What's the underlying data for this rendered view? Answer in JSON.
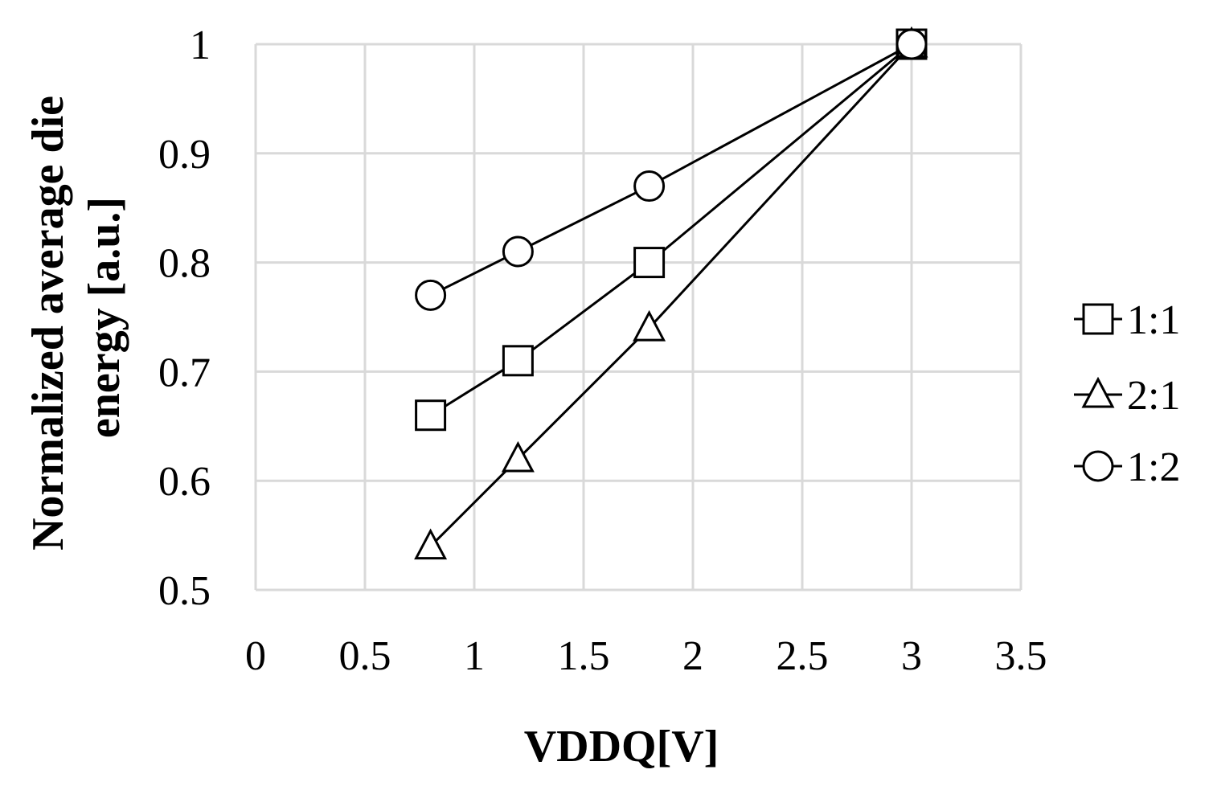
{
  "chart_data": {
    "type": "line",
    "title": "",
    "xlabel": "VDDQ[V]",
    "ylabel_lines": [
      "Normalized average die",
      "energy [a.u.]"
    ],
    "xlim": [
      0,
      3.5
    ],
    "ylim": [
      0.5,
      1
    ],
    "x_ticks": [
      0,
      0.5,
      1,
      1.5,
      2,
      2.5,
      3,
      3.5
    ],
    "x_tick_labels": [
      "0",
      "0.5",
      "1",
      "1.5",
      "2",
      "2.5",
      "3",
      "3.5"
    ],
    "y_ticks": [
      0.5,
      0.6,
      0.7,
      0.8,
      0.9,
      1
    ],
    "y_tick_labels": [
      "0.5",
      "0.6",
      "0.7",
      "0.8",
      "0.9",
      "1"
    ],
    "grid": true,
    "legend_position": "right",
    "series": [
      {
        "name": "1:1",
        "marker": "square",
        "x": [
          0.8,
          1.2,
          1.8,
          3.0
        ],
        "y": [
          0.66,
          0.71,
          0.8,
          1.0
        ]
      },
      {
        "name": "2:1",
        "marker": "triangle",
        "x": [
          0.8,
          1.2,
          1.8,
          3.0
        ],
        "y": [
          0.54,
          0.62,
          0.74,
          1.0
        ]
      },
      {
        "name": "1:2",
        "marker": "circle",
        "x": [
          0.8,
          1.2,
          1.8,
          3.0
        ],
        "y": [
          0.77,
          0.81,
          0.87,
          1.0
        ]
      }
    ]
  }
}
